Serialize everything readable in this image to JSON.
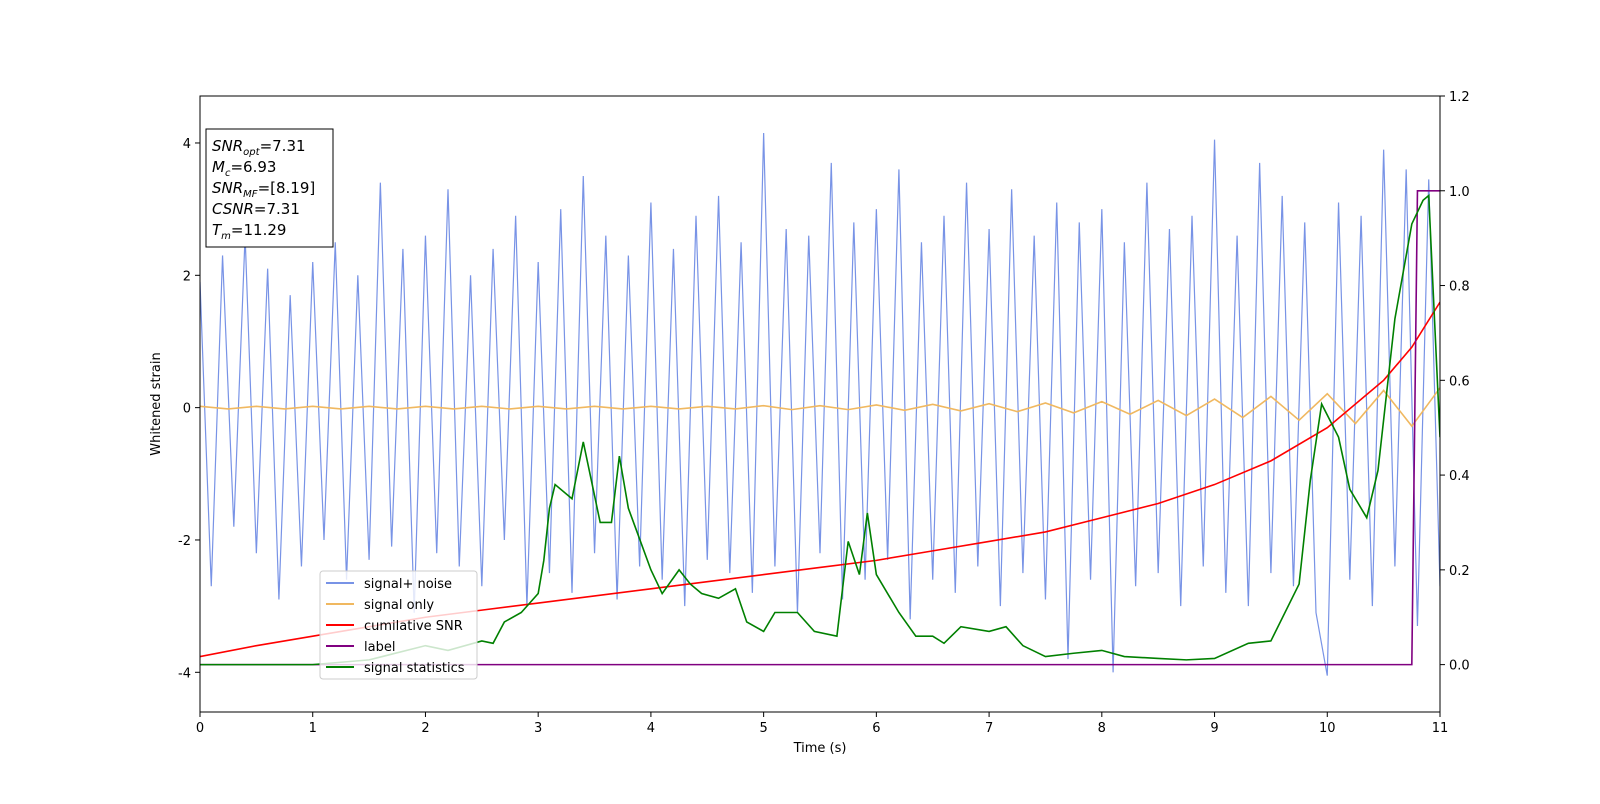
{
  "chart_data": {
    "type": "line",
    "xlabel": "Time (s)",
    "ylabel": "Whitened strain",
    "xlim": [
      0,
      11
    ],
    "xticks": [
      0,
      1,
      2,
      3,
      4,
      5,
      6,
      7,
      8,
      9,
      10,
      11
    ],
    "ylim": [
      -4.6,
      4.71
    ],
    "yticks": [
      -4,
      -2,
      0,
      2,
      4
    ],
    "y2lim": [
      -0.1,
      1.2
    ],
    "y2ticks": [
      {
        "value": 0,
        "label": "0.0"
      },
      0.2,
      0.4,
      0.6,
      0.8,
      {
        "value": 1,
        "label": "1.0"
      },
      1.2
    ],
    "legend_loc": "lower left",
    "annotations": [
      {
        "symbol": "SNR",
        "sub": "opt",
        "rest": "=7.31"
      },
      {
        "symbol": "M",
        "sub": "c",
        "rest": "=6.93"
      },
      {
        "symbol": "SNR",
        "sub": "MF",
        "rest": "=[8.19]"
      },
      {
        "symbol": "CSNR",
        "rest": "=7.31"
      },
      {
        "symbol": "T",
        "sub": "m",
        "rest": "=11.29"
      }
    ],
    "series": [
      {
        "name": "signal+ noise",
        "color": "#7893e6",
        "x": [
          0,
          0.1,
          0.2,
          0.3,
          0.4,
          0.5,
          0.6,
          0.7,
          0.8,
          0.9,
          1,
          1.1,
          1.2,
          1.3,
          1.4,
          1.5,
          1.6,
          1.7,
          1.8,
          1.9,
          2,
          2.1,
          2.2,
          2.3,
          2.4,
          2.5,
          2.6,
          2.7,
          2.8,
          2.9,
          3,
          3.1,
          3.2,
          3.3,
          3.4,
          3.5,
          3.6,
          3.7,
          3.8,
          3.9,
          4,
          4.1,
          4.2,
          4.3,
          4.4,
          4.5,
          4.6,
          4.7,
          4.8,
          4.9,
          5,
          5.1,
          5.2,
          5.3,
          5.4,
          5.5,
          5.6,
          5.7,
          5.8,
          5.9,
          6,
          6.1,
          6.2,
          6.3,
          6.4,
          6.5,
          6.6,
          6.7,
          6.8,
          6.9,
          7,
          7.1,
          7.2,
          7.3,
          7.4,
          7.5,
          7.6,
          7.7,
          7.8,
          7.9,
          8,
          8.1,
          8.2,
          8.3,
          8.4,
          8.5,
          8.6,
          8.7,
          8.8,
          8.9,
          9,
          9.1,
          9.2,
          9.3,
          9.4,
          9.5,
          9.6,
          9.7,
          9.8,
          9.9,
          10,
          10.1,
          10.2,
          10.3,
          10.4,
          10.5,
          10.6,
          10.7,
          10.8,
          10.9,
          11
        ],
        "values": [
          1.9,
          -2.7,
          2.3,
          -1.8,
          2.6,
          -2.2,
          2.1,
          -2.9,
          1.7,
          -2.4,
          2.2,
          -2.0,
          2.5,
          -2.6,
          2.0,
          -2.3,
          3.4,
          -2.1,
          2.4,
          -3.1,
          2.6,
          -2.2,
          3.3,
          -2.4,
          2.0,
          -2.7,
          2.4,
          -2.0,
          2.9,
          -3.0,
          2.2,
          -2.5,
          3.0,
          -2.8,
          3.5,
          -2.2,
          2.6,
          -2.9,
          2.3,
          -2.4,
          3.1,
          -2.6,
          2.4,
          -3.0,
          2.9,
          -2.3,
          3.2,
          -2.5,
          2.5,
          -2.8,
          4.15,
          -2.4,
          2.7,
          -3.1,
          2.6,
          -2.2,
          3.7,
          -2.9,
          2.8,
          -2.6,
          3.0,
          -2.3,
          3.6,
          -3.2,
          2.5,
          -2.6,
          2.9,
          -2.8,
          3.4,
          -2.4,
          2.7,
          -3.0,
          3.3,
          -2.5,
          2.6,
          -2.9,
          3.1,
          -3.8,
          2.8,
          -2.6,
          3.0,
          -4.0,
          2.5,
          -2.7,
          3.4,
          -2.5,
          2.7,
          -3.0,
          2.9,
          -2.4,
          4.05,
          -2.8,
          2.6,
          -3.0,
          3.7,
          -2.5,
          3.2,
          -2.7,
          2.8,
          -3.1,
          -4.05,
          3.1,
          -2.6,
          2.9,
          -3.0,
          3.9,
          -2.4,
          3.6,
          -3.3,
          3.45,
          -2.7
        ]
      },
      {
        "name": "signal only",
        "color": "#f0b860",
        "x": [
          0,
          0.25,
          0.5,
          0.75,
          1,
          1.25,
          1.5,
          1.75,
          2,
          2.25,
          2.5,
          2.75,
          3,
          3.25,
          3.5,
          3.75,
          4,
          4.25,
          4.5,
          4.75,
          5,
          5.25,
          5.5,
          5.75,
          6,
          6.25,
          6.5,
          6.75,
          7,
          7.25,
          7.5,
          7.75,
          8,
          8.25,
          8.5,
          8.75,
          9,
          9.25,
          9.5,
          9.75,
          10,
          10.25,
          10.5,
          10.75,
          11
        ],
        "values": [
          0.02,
          -0.02,
          0.02,
          -0.02,
          0.02,
          -0.02,
          0.02,
          -0.02,
          0.02,
          -0.02,
          0.02,
          -0.02,
          0.02,
          -0.02,
          0.02,
          -0.02,
          0.02,
          -0.02,
          0.02,
          -0.02,
          0.03,
          -0.03,
          0.03,
          -0.03,
          0.04,
          -0.04,
          0.05,
          -0.05,
          0.06,
          -0.06,
          0.07,
          -0.08,
          0.09,
          -0.1,
          0.11,
          -0.12,
          0.13,
          -0.15,
          0.17,
          -0.19,
          0.21,
          -0.24,
          0.26,
          -0.28,
          0.3
        ]
      },
      {
        "name": "cumilative SNR",
        "color": "#ff0000",
        "axis": "y2",
        "x": [
          0,
          0.5,
          1,
          1.5,
          2,
          2.5,
          3,
          3.5,
          4,
          4.5,
          5,
          5.5,
          6,
          6.5,
          7,
          7.5,
          8,
          8.5,
          9,
          9.5,
          10,
          10.5,
          10.75,
          11
        ],
        "values": [
          0.017,
          0.04,
          0.06,
          0.08,
          0.1,
          0.115,
          0.13,
          0.145,
          0.16,
          0.175,
          0.19,
          0.205,
          0.22,
          0.24,
          0.26,
          0.28,
          0.31,
          0.34,
          0.38,
          0.43,
          0.5,
          0.6,
          0.67,
          0.765
        ]
      },
      {
        "name": "label",
        "color": "#800080",
        "axis": "y2",
        "x": [
          0,
          10.75,
          10.8,
          11
        ],
        "values": [
          0,
          0,
          1,
          1
        ]
      },
      {
        "name": "signal statistics",
        "color": "#008000",
        "axis": "y2",
        "x": [
          0,
          1,
          1.5,
          2,
          2.2,
          2.5,
          2.6,
          2.7,
          2.85,
          3,
          3.05,
          3.1,
          3.15,
          3.3,
          3.4,
          3.55,
          3.65,
          3.72,
          3.8,
          4,
          4.1,
          4.25,
          4.35,
          4.45,
          4.6,
          4.75,
          4.85,
          5,
          5.1,
          5.3,
          5.45,
          5.65,
          5.75,
          5.85,
          5.92,
          6,
          6.2,
          6.35,
          6.5,
          6.6,
          6.75,
          7,
          7.15,
          7.3,
          7.5,
          7.75,
          8,
          8.2,
          8.5,
          8.75,
          9,
          9.3,
          9.5,
          9.75,
          9.85,
          9.95,
          10.1,
          10.2,
          10.35,
          10.45,
          10.6,
          10.75,
          10.85,
          10.9,
          11
        ],
        "values": [
          0,
          0,
          0.01,
          0.04,
          0.03,
          0.05,
          0.045,
          0.09,
          0.11,
          0.15,
          0.22,
          0.33,
          0.38,
          0.35,
          0.47,
          0.3,
          0.3,
          0.44,
          0.33,
          0.2,
          0.15,
          0.2,
          0.17,
          0.15,
          0.14,
          0.16,
          0.09,
          0.07,
          0.11,
          0.11,
          0.07,
          0.06,
          0.26,
          0.19,
          0.32,
          0.19,
          0.11,
          0.06,
          0.06,
          0.045,
          0.08,
          0.07,
          0.08,
          0.04,
          0.017,
          0.024,
          0.03,
          0.017,
          0.013,
          0.01,
          0.013,
          0.045,
          0.05,
          0.17,
          0.39,
          0.55,
          0.48,
          0.37,
          0.31,
          0.41,
          0.73,
          0.93,
          0.98,
          0.99,
          0.48
        ]
      }
    ]
  }
}
